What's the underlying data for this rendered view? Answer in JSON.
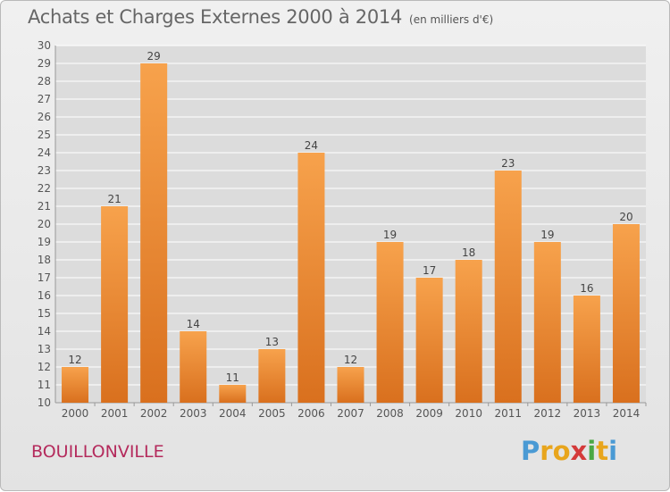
{
  "title": "Achats et Charges Externes 2000 à 2014",
  "subtitle": "(en milliers d'€)",
  "town": "BOUILLONVILLE",
  "logo": {
    "letters": [
      "P",
      "r",
      "o",
      "x",
      "i",
      "t",
      "i"
    ],
    "colors": [
      "#4a9ad4",
      "#e8a51c",
      "#e8a51c",
      "#d43a3a",
      "#4aa844",
      "#e8a51c",
      "#4a9ad4"
    ]
  },
  "chart_data": {
    "type": "bar",
    "categories": [
      "2000",
      "2001",
      "2002",
      "2003",
      "2004",
      "2005",
      "2006",
      "2007",
      "2008",
      "2009",
      "2010",
      "2011",
      "2012",
      "2013",
      "2014"
    ],
    "values": [
      12,
      21,
      29,
      14,
      11,
      13,
      24,
      12,
      19,
      17,
      18,
      23,
      19,
      16,
      20
    ],
    "ylim": [
      10,
      30
    ],
    "yticks": [
      10,
      11,
      12,
      13,
      14,
      15,
      16,
      17,
      18,
      19,
      20,
      21,
      22,
      23,
      24,
      25,
      26,
      27,
      28,
      29,
      30
    ],
    "bar_color": "#f0923a",
    "grid": true
  }
}
